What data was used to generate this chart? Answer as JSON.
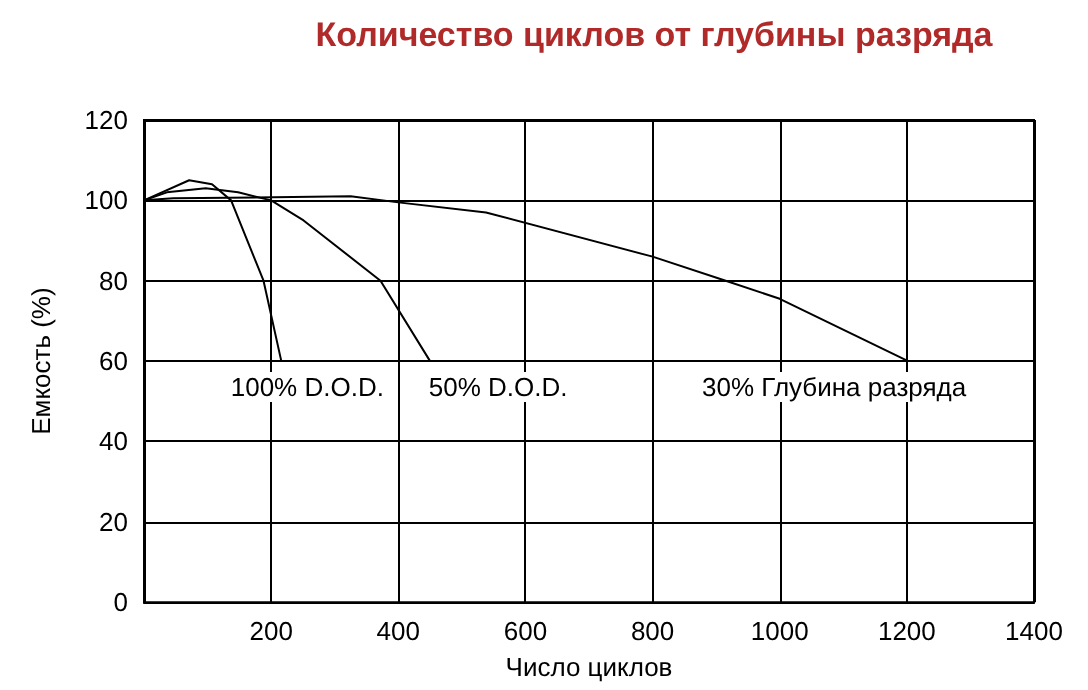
{
  "chart_data": {
    "type": "line",
    "title": "Количество циклов от глубины разряда",
    "xlabel": "Число циклов",
    "ylabel": "Емкость (%)",
    "series": [
      {
        "name": "100% D.O.D.",
        "color": "#000000",
        "x": [
          0,
          71,
          107,
          137,
          188,
          216
        ],
        "values": [
          100,
          105,
          104,
          100,
          80,
          60
        ]
      },
      {
        "name": "50% D.O.D.",
        "color": "#000000",
        "x": [
          0,
          36,
          97,
          148,
          200,
          251,
          372,
          450
        ],
        "values": [
          100,
          102,
          103,
          102,
          100,
          95,
          80,
          60
        ]
      },
      {
        "name": "30% Глубина разряда",
        "color": "#000000",
        "x": [
          0,
          46,
          325,
          400,
          538,
          800,
          915,
          1000,
          1202
        ],
        "values": [
          100,
          100.5,
          101,
          99.5,
          97,
          86,
          80,
          75.5,
          60
        ]
      }
    ],
    "xlim": [
      0,
      1400
    ],
    "xticks": [
      {
        "value": 0,
        "label": null
      },
      200,
      400,
      600,
      800,
      1000,
      1200,
      1400
    ],
    "ylim": [
      0,
      120
    ],
    "yticks": [
      0,
      20,
      40,
      60,
      80,
      100,
      120
    ],
    "grid": true,
    "marker": "none"
  }
}
